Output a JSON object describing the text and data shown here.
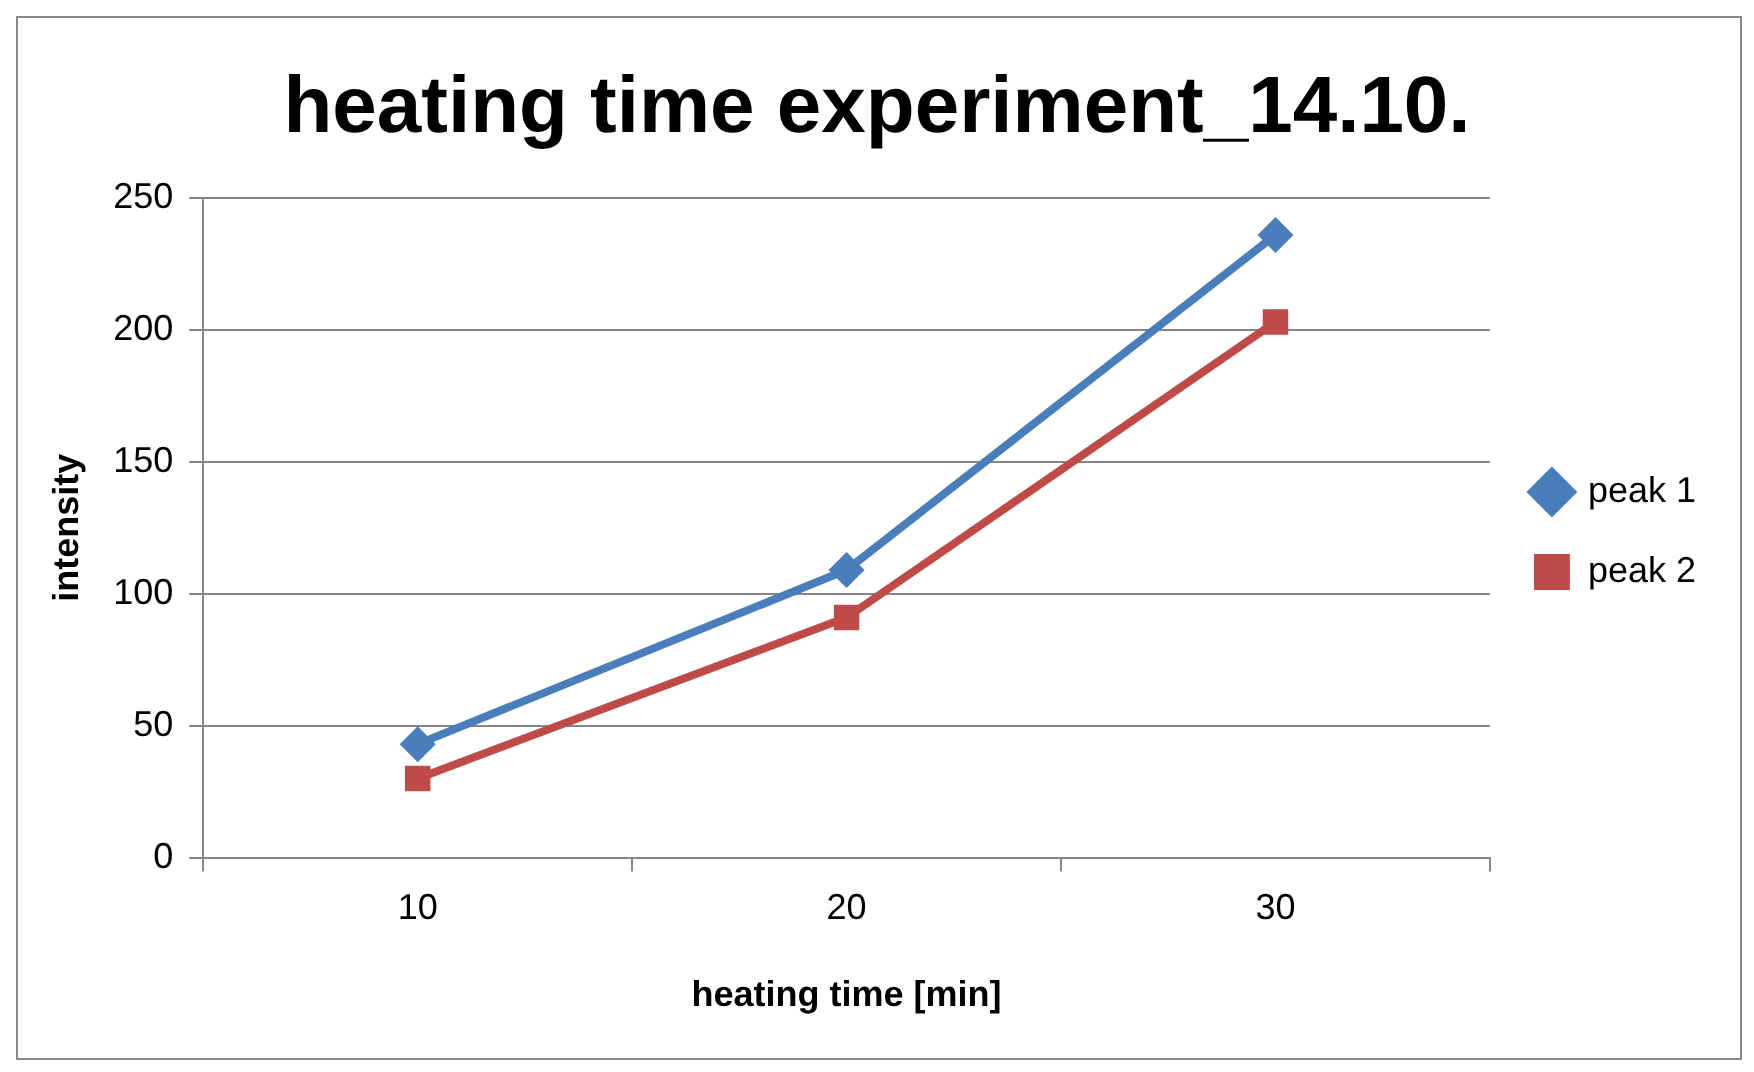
{
  "chart_data": {
    "type": "line",
    "title": "heating time experiment_14.10.",
    "xlabel": "heating time [min]",
    "ylabel": "intensity",
    "categories": [
      "10",
      "20",
      "30"
    ],
    "series": [
      {
        "name": "peak 1",
        "color": "#4a7ebb",
        "marker": "diamond",
        "values": [
          43,
          109,
          236
        ]
      },
      {
        "name": "peak 2",
        "color": "#be4b48",
        "marker": "square",
        "values": [
          30,
          91,
          203
        ]
      }
    ],
    "ylim": [
      0,
      250
    ],
    "yticks": [
      0,
      50,
      100,
      150,
      200,
      250
    ],
    "grid": "y",
    "legend": "right",
    "line_style": "solid"
  }
}
